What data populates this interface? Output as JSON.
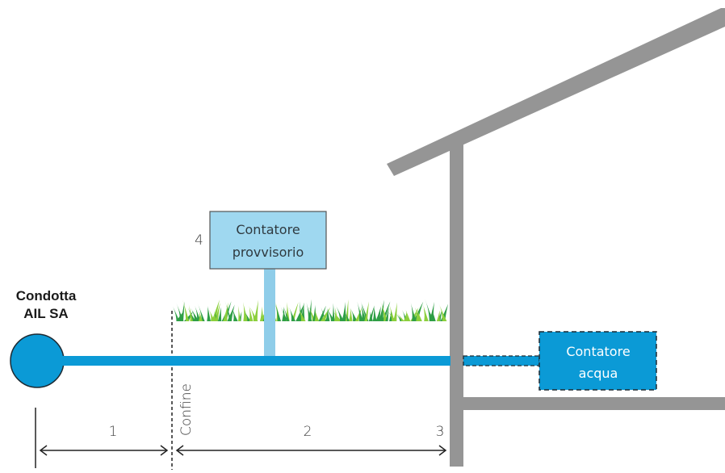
{
  "main_pipe_label": {
    "line1": "Condotta",
    "line2": "AIL SA"
  },
  "temporary_meter": {
    "number": "4",
    "line1": "Contatore",
    "line2": "provvisorio"
  },
  "water_meter": {
    "line1": "Contatore",
    "line2": "acqua"
  },
  "boundary_label": "Confine",
  "segments": {
    "seg1": "1",
    "seg2": "2",
    "seg3": "3"
  },
  "colors": {
    "pipe": "#0b9ad6",
    "pipe_light": "#8fcde9",
    "meter_box": "#9fd8f0",
    "building": "#959595",
    "grass_dark": "#2e9e45",
    "grass_light": "#8ccf3c"
  }
}
